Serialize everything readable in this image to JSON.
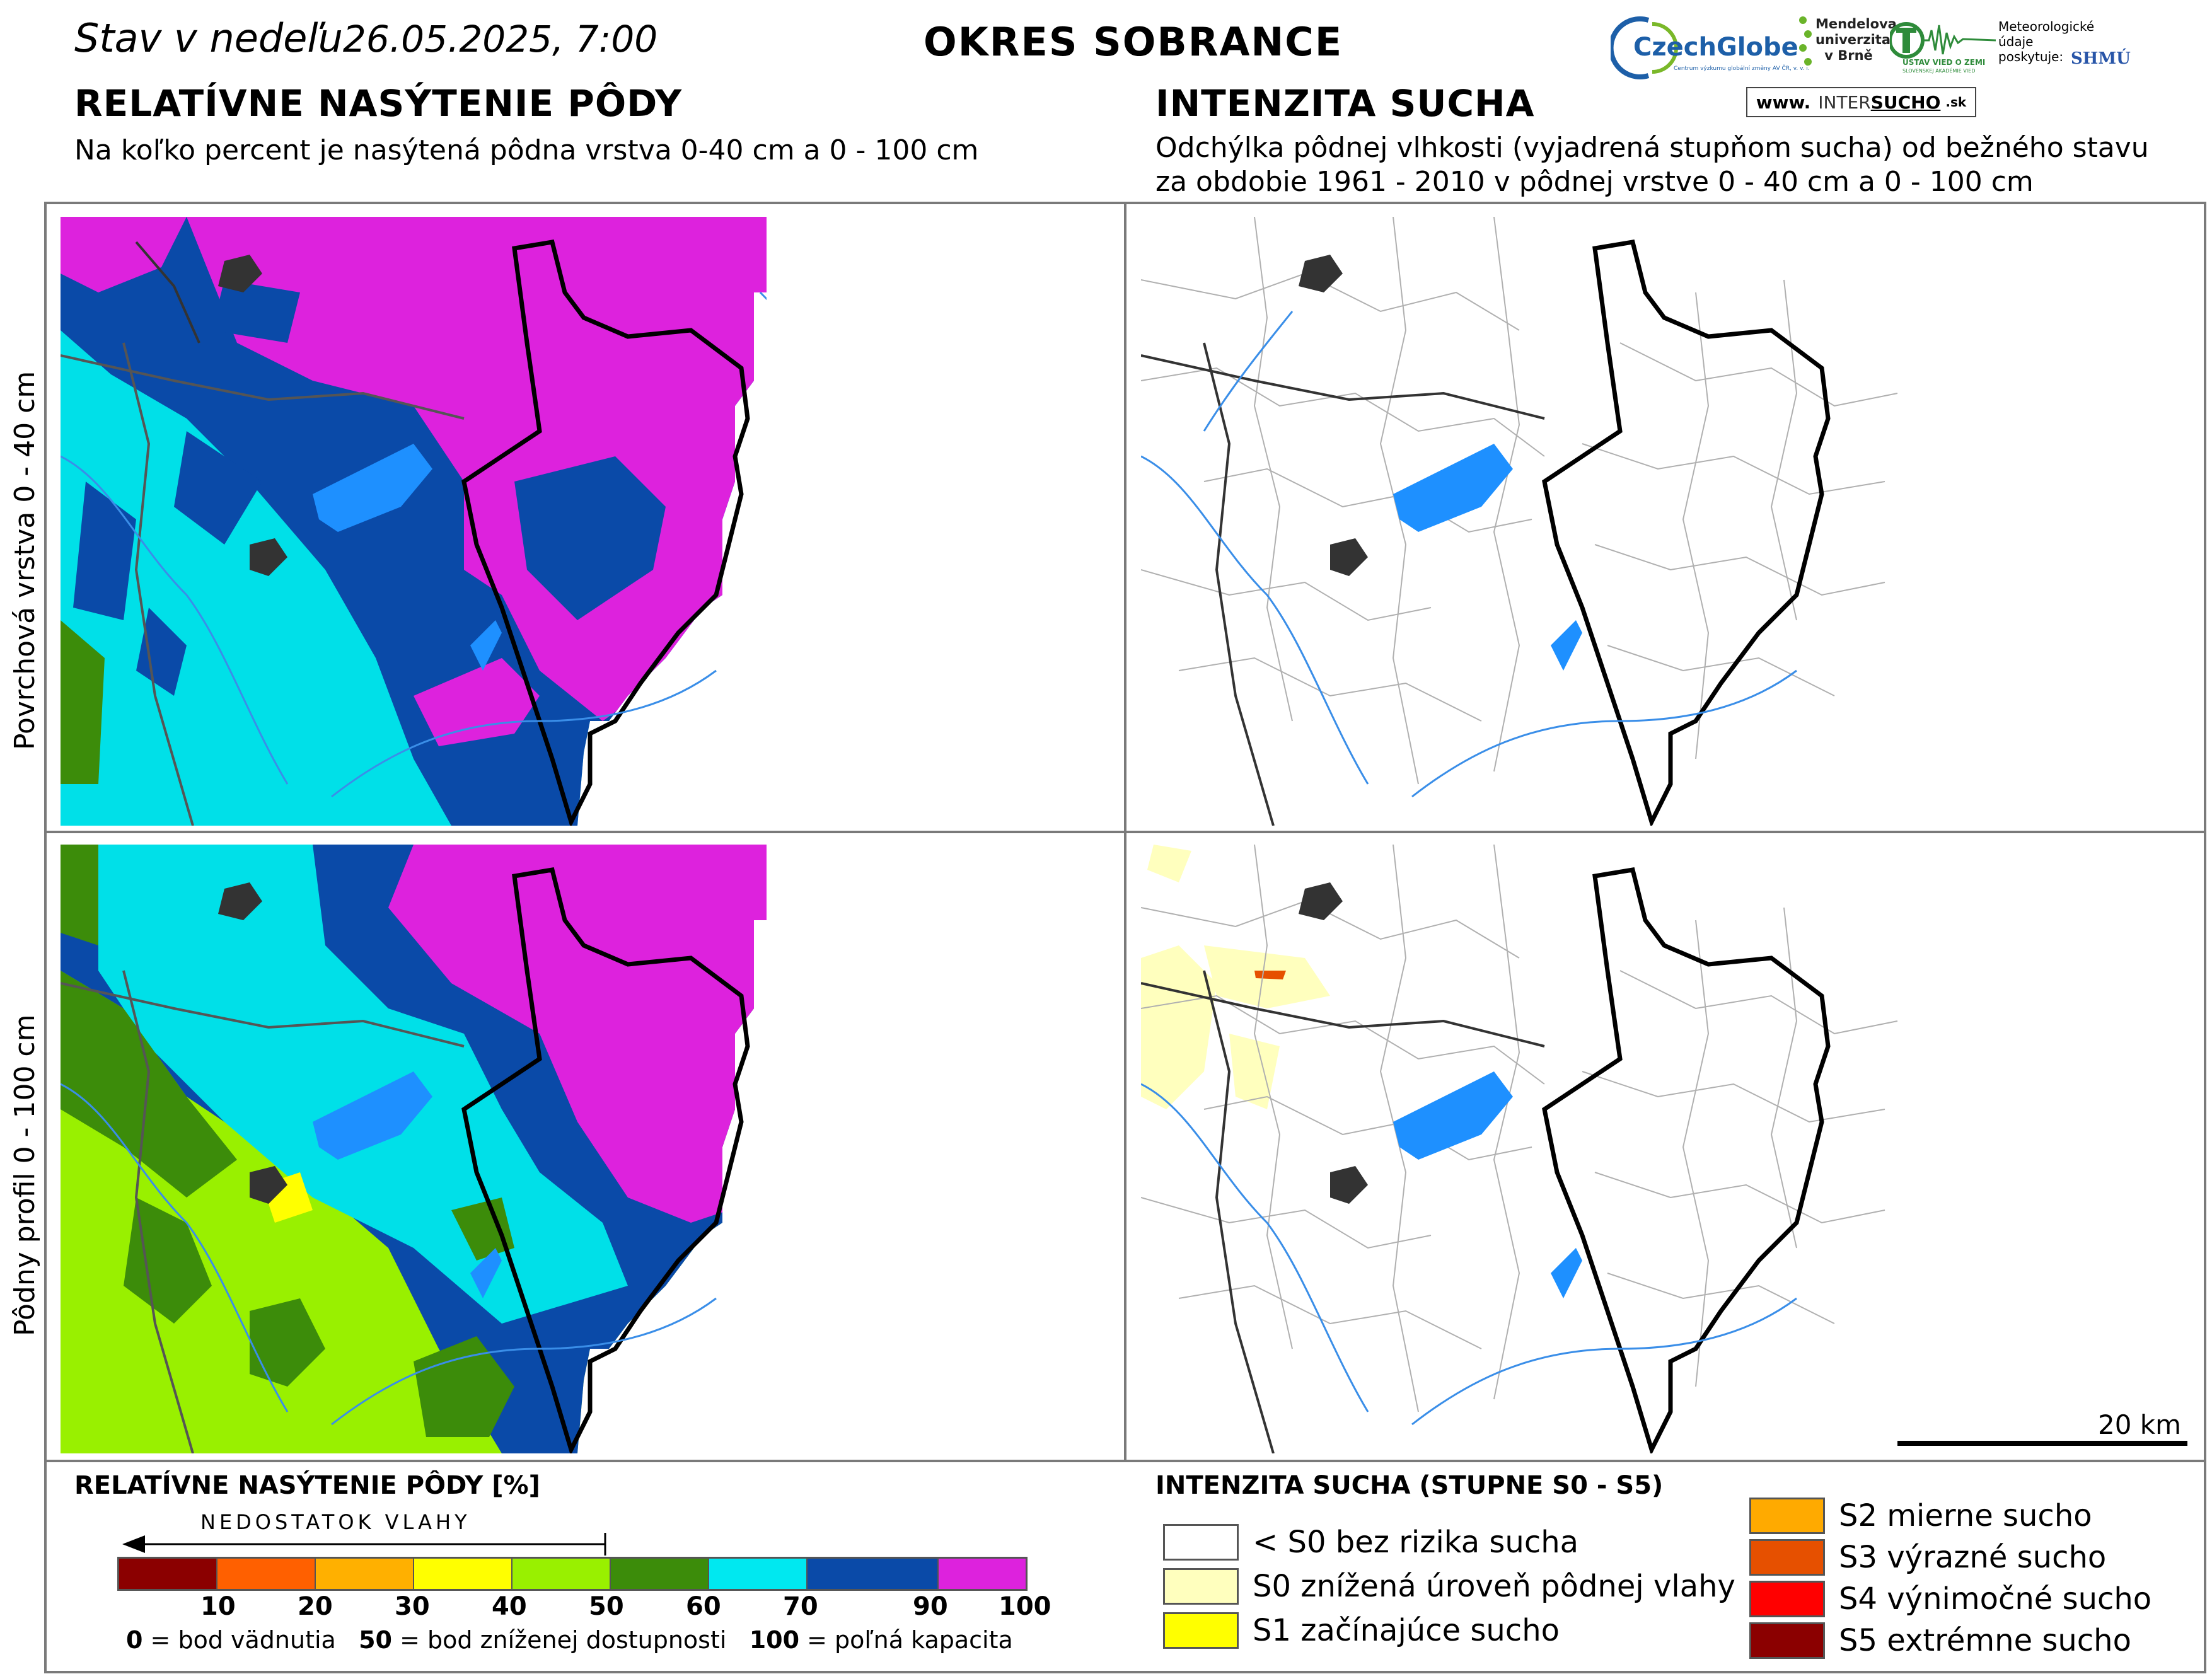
{
  "header": {
    "stav_prefix": "Stav v nedeľu",
    "datetime": "26.05.2025, 7:00",
    "district": "OKRES SOBRANCE"
  },
  "logos": {
    "czechglobe": "CzechGlobe",
    "czechglobe_sub": "Centrum výzkumu globální změny AV ČR, v. v. i.",
    "mendelu": "Mendelova univerzita v Brně",
    "uvz": "ÚSTAV VIED O ZEMI",
    "uvz_sub": "SLOVENSKEJ AKADÉMIE VIED",
    "meteo": "Meteorologické údaje poskytuje:",
    "shmu": "SHMÚ",
    "intersucho_prefix": "www.",
    "intersucho_a": "INTER",
    "intersucho_b": "SUCHO",
    "intersucho_c": ".sk"
  },
  "left_section": {
    "title": "RELATÍVNE NASÝTENIE PÔDY",
    "subtitle": "Na koľko percent je nasýtená pôdna vrstva 0-40 cm a 0 - 100 cm"
  },
  "right_section": {
    "title": "INTENZITA SUCHA",
    "subtitle_1": "Odchýlka pôdnej vlhkosti (vyjadrená stupňom sucha) od bežného stavu",
    "subtitle_2": "za obdobie 1961 - 2010 v pôdnej vrstve 0 - 40 cm a 0 - 100 cm"
  },
  "row_labels": {
    "top": "Povrchová vrstva 0 - 40 cm",
    "bottom": "Pôdny profil 0 - 100 cm"
  },
  "scale_bar": {
    "label": "20 km"
  },
  "saturation_legend": {
    "title": "RELATÍVNE NASÝTENIE PÔDY [%]",
    "arrow_label": "NEDOSTATOK VLAHY",
    "classes": [
      {
        "color": "#8b0000"
      },
      {
        "color": "#ff6000"
      },
      {
        "color": "#ffb000"
      },
      {
        "color": "#ffff00"
      },
      {
        "color": "#99f000"
      },
      {
        "color": "#3c8c0a"
      },
      {
        "color": "#00e8f0"
      },
      {
        "color": "#0a4aa8"
      },
      {
        "color": "#dd22dd"
      }
    ],
    "ticks": [
      "10",
      "20",
      "30",
      "40",
      "50",
      "60",
      "70",
      "90",
      "100"
    ],
    "note_0_val": "0",
    "note_0_text": "= bod vädnutia",
    "note_50_val": "50",
    "note_50_text": "= bod zníženej dostupnosti",
    "note_100_val": "100",
    "note_100_text": "= poľná kapacita"
  },
  "drought_legend": {
    "title": "INTENZITA SUCHA (STUPNE S0 - S5)",
    "items": [
      {
        "label": "< S0 bez rizika sucha",
        "color": "#ffffff"
      },
      {
        "label": "S0 znížená úroveň pôdnej vlahy",
        "color": "#ffffbe"
      },
      {
        "label": "S1 začínajúce sucho",
        "color": "#ffff00"
      },
      {
        "label": "S2 mierne sucho",
        "color": "#ffaa00"
      },
      {
        "label": "S3 výrazné sucho",
        "color": "#e65000"
      },
      {
        "label": "S4 výnimočné sucho",
        "color": "#ff0000"
      },
      {
        "label": "S5 extrémne sucho",
        "color": "#8b0000"
      }
    ]
  }
}
